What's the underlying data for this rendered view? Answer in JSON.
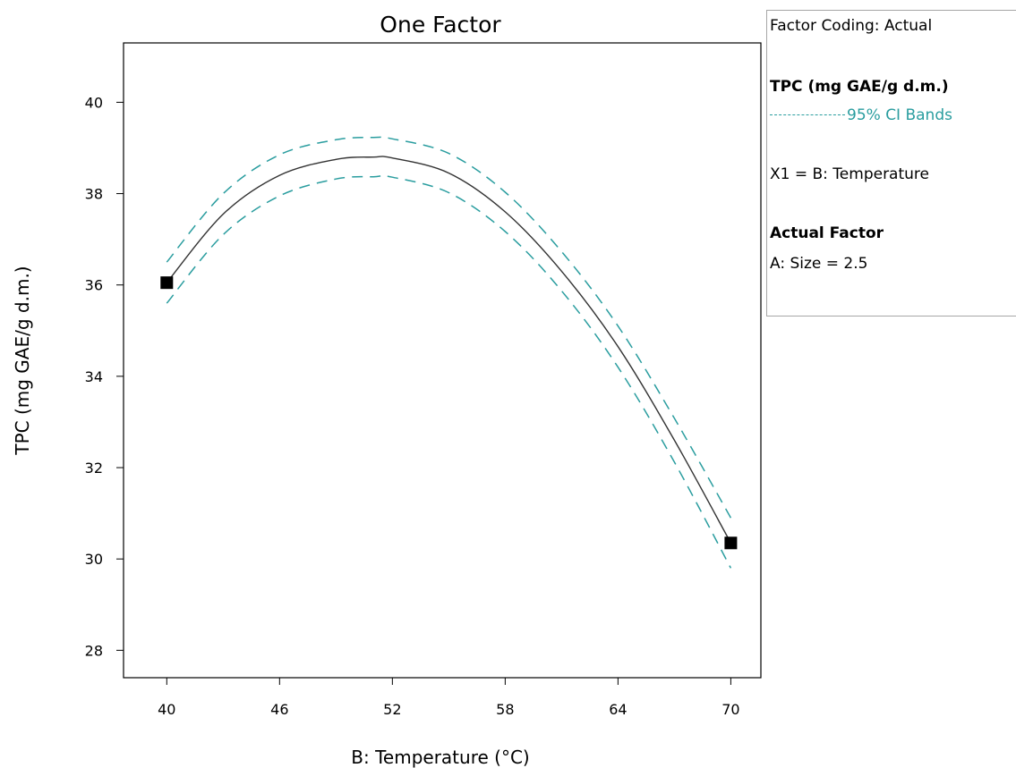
{
  "chart_data": {
    "type": "line",
    "title": "One Factor",
    "xlabel": "B: Temperature (°C)",
    "ylabel": "TPC (mg GAE/g d.m.)",
    "xlim": [
      37.7,
      71.6
    ],
    "ylim": [
      27.4,
      41.3
    ],
    "xticks": [
      40,
      46,
      52,
      58,
      64,
      70
    ],
    "yticks": [
      28,
      30,
      32,
      34,
      36,
      38,
      40
    ],
    "xtick_labels": [
      "40",
      "46",
      "52",
      "58",
      "64",
      "70"
    ],
    "ytick_labels": [
      "28",
      "30",
      "32",
      "34",
      "36",
      "38",
      "40"
    ],
    "grid": false,
    "series": [
      {
        "name": "TPC (mg GAE/g d.m.)",
        "style": "solid",
        "color": "#333333",
        "x": [
          40,
          43,
          46,
          49,
          51,
          52,
          55,
          58,
          61,
          64,
          67,
          70
        ],
        "y": [
          36.05,
          37.55,
          38.4,
          38.75,
          38.8,
          38.78,
          38.45,
          37.6,
          36.3,
          34.65,
          32.6,
          30.35
        ]
      },
      {
        "name": "95% CI Bands",
        "style": "dashed",
        "color": "#2a9d9f",
        "x": [
          40,
          43,
          46,
          49,
          51,
          52,
          55,
          58,
          61,
          64,
          67,
          70
        ],
        "y": [
          36.5,
          38.0,
          38.85,
          39.18,
          39.23,
          39.2,
          38.88,
          38.03,
          36.73,
          35.1,
          33.08,
          30.9
        ]
      },
      {
        "name": "",
        "style": "dashed",
        "color": "#2a9d9f",
        "x": [
          40,
          43,
          46,
          49,
          51,
          52,
          55,
          58,
          61,
          64,
          67,
          70
        ],
        "y": [
          35.6,
          37.1,
          37.95,
          38.32,
          38.37,
          38.36,
          38.02,
          37.17,
          35.87,
          34.2,
          32.12,
          29.8
        ]
      }
    ],
    "markers": {
      "color": "#000000",
      "x": [
        40,
        70
      ],
      "y": [
        36.05,
        30.35
      ]
    }
  },
  "legend": {
    "coding": "Factor Coding: Actual",
    "response_title": "TPC (mg GAE/g d.m.)",
    "ci_label": "95% CI Bands",
    "x1": "X1 = B: Temperature",
    "actual_factor_title": "Actual Factor",
    "actual_factor_value": "A: Size = 2.5"
  },
  "colors": {
    "ci_band": "#2a9d9f",
    "fit_line": "#333333",
    "frame": "#000000",
    "legend_border": "#a6a6a6"
  }
}
